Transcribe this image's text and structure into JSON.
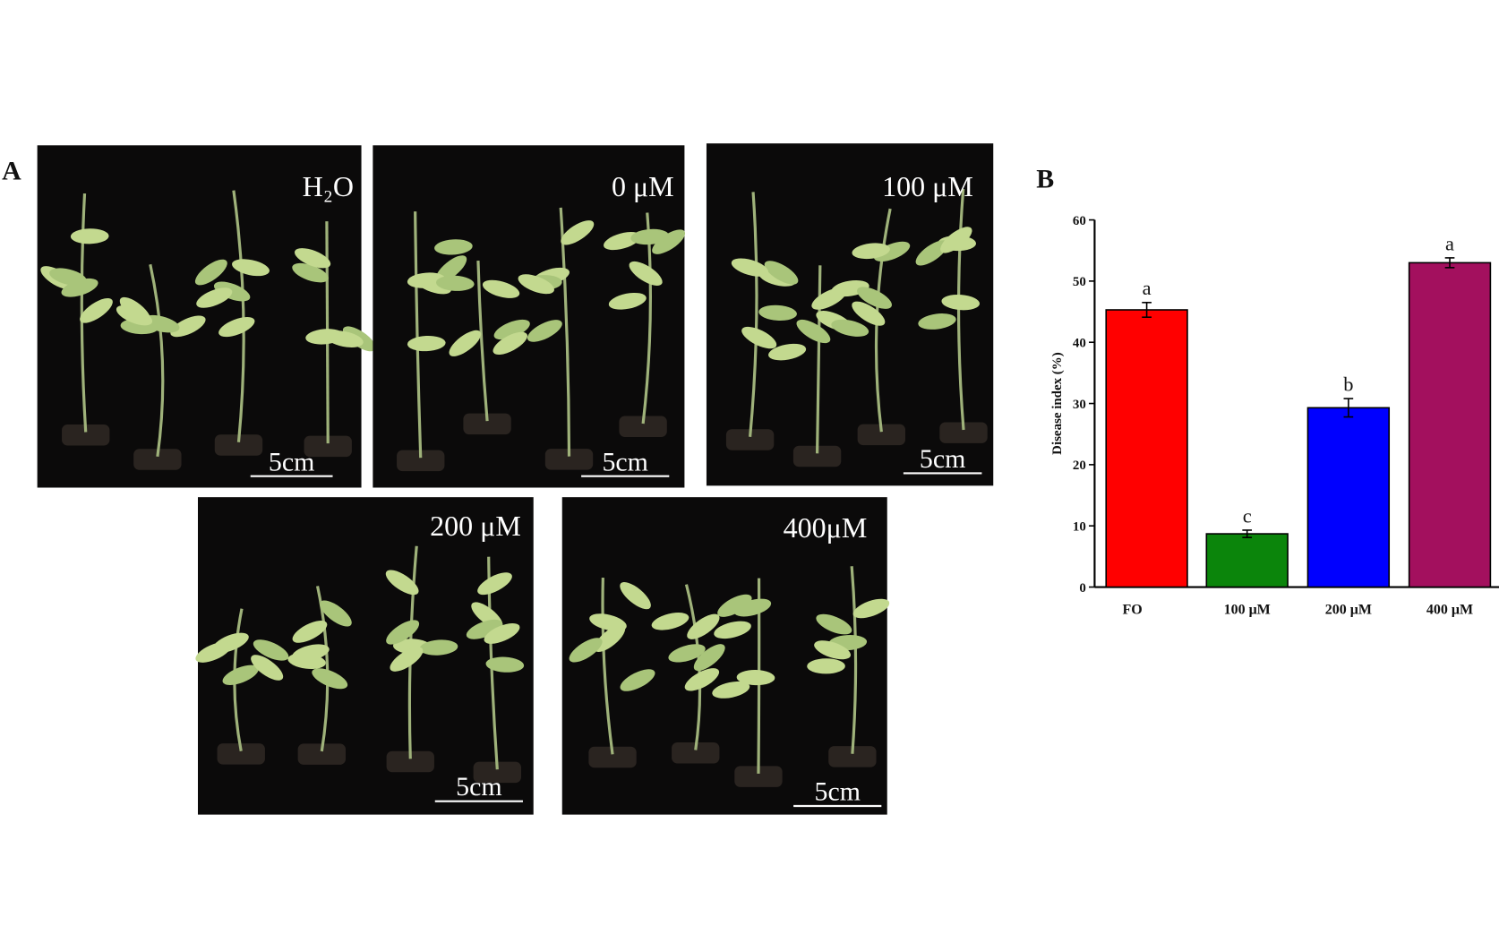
{
  "panel_a": {
    "label": "A",
    "photos": [
      {
        "label": "H₂O",
        "scale_label": "5cm"
      },
      {
        "label": "0 μM",
        "scale_label": "5cm"
      },
      {
        "label": "100 μM",
        "scale_label": "5cm"
      },
      {
        "label": "200 μM",
        "scale_label": "5cm"
      },
      {
        "label": "400μM",
        "scale_label": "5cm"
      }
    ]
  },
  "panel_b": {
    "label": "B"
  },
  "chart_data": {
    "type": "bar",
    "y_label": "Disease index (%)",
    "categories": [
      "FO",
      "100 μM",
      "200 μM",
      "400 μM"
    ],
    "values": [
      45.3,
      8.7,
      29.3,
      53.0
    ],
    "errors": [
      1.2,
      0.6,
      1.5,
      0.8
    ],
    "annotations": [
      "a",
      "c",
      "b",
      "a"
    ],
    "colors": [
      "#ff0000",
      "#0b850b",
      "#0000ff",
      "#a3105e"
    ],
    "ylim": [
      0,
      60
    ],
    "yticks": [
      0,
      10,
      20,
      30,
      40,
      50,
      60
    ]
  }
}
